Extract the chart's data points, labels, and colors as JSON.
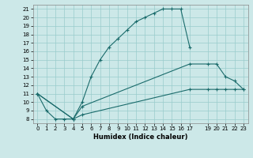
{
  "xlabel": "Humidex (Indice chaleur)",
  "bg_color": "#cce8e8",
  "grid_color": "#99cccc",
  "line_color": "#1a6b6b",
  "xlim": [
    -0.5,
    23.5
  ],
  "ylim": [
    7.5,
    21.5
  ],
  "xticks": [
    0,
    1,
    2,
    3,
    4,
    5,
    6,
    7,
    8,
    9,
    10,
    11,
    12,
    13,
    14,
    15,
    16,
    17,
    19,
    20,
    21,
    22,
    23
  ],
  "yticks": [
    8,
    9,
    10,
    11,
    12,
    13,
    14,
    15,
    16,
    17,
    18,
    19,
    20,
    21
  ],
  "line1_x": [
    0,
    1,
    2,
    3,
    4,
    5,
    6,
    7,
    8,
    9,
    10,
    11,
    12,
    13,
    14,
    15,
    16,
    17
  ],
  "line1_y": [
    11,
    9,
    8,
    8,
    8,
    10,
    13,
    15,
    16.5,
    17.5,
    18.5,
    19.5,
    20,
    20.5,
    21,
    21,
    21,
    16.5
  ],
  "line2_x": [
    0,
    4,
    5,
    17,
    19,
    20,
    21,
    22,
    23
  ],
  "line2_y": [
    11,
    8,
    9.5,
    14.5,
    14.5,
    14.5,
    13,
    12.5,
    11.5
  ],
  "line3_x": [
    0,
    4,
    5,
    17,
    19,
    20,
    21,
    22,
    23
  ],
  "line3_y": [
    11,
    8,
    8.5,
    11.5,
    11.5,
    11.5,
    11.5,
    11.5,
    11.5
  ]
}
